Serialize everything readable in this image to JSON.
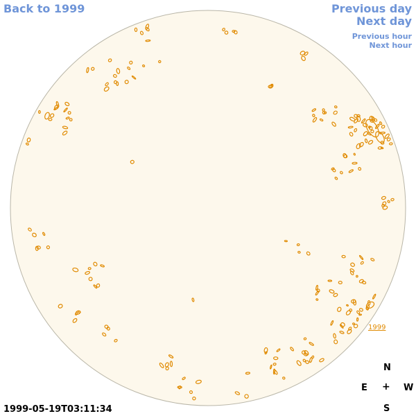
{
  "nav": {
    "back_label": "Back to 1999",
    "previous_day_label": "Previous day",
    "next_day_label": "Next day",
    "previous_hour_label": "Previous hour",
    "next_hour_label": "Next hour"
  },
  "compass": {
    "n": "N",
    "e": "E",
    "center": "+",
    "w": "W",
    "s": "S"
  },
  "timestamp": "1999-05-19T03:11:34",
  "region_label": "1999",
  "colors": {
    "nav_text": "#6f95d8",
    "disk_fill": "#fdf8ec",
    "disk_outline": "#b9b6a8",
    "contour": "#e08a00"
  }
}
